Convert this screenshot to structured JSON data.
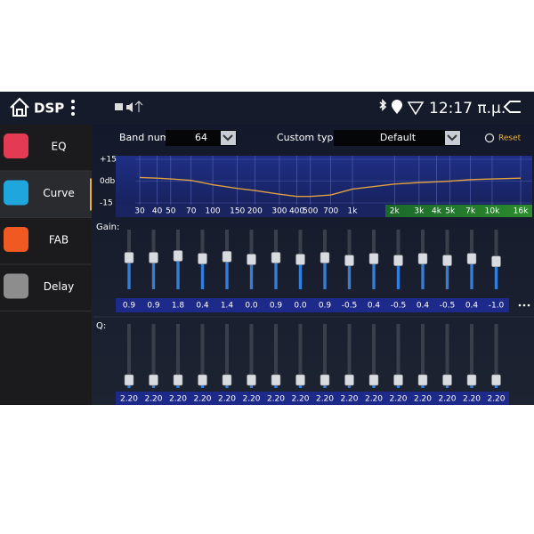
{
  "status_bar": {
    "title": "DSP",
    "time": "12:17 π.μ."
  },
  "sidebar": {
    "items": [
      "EQ",
      "Curve",
      "FAB",
      "Delay"
    ],
    "selected": 1
  },
  "controls": {
    "band_num_label": "Band num:",
    "band_num": 64,
    "custom_type_label": "Custom type:",
    "custom_type": "Default",
    "reset": "Reset"
  },
  "curve_graph": {
    "yticks": [
      {
        "value": 15,
        "label": "+15"
      },
      {
        "value": 0,
        "label": "0db"
      },
      {
        "value": -15,
        "label": "-15"
      }
    ],
    "freqs": [
      30,
      40,
      50,
      70,
      100,
      150,
      200,
      300,
      400,
      500,
      700,
      {
        "value": 1000,
        "label": "1k"
      },
      {
        "value": 2000,
        "label": "2k"
      },
      {
        "value": 3000,
        "label": "3k"
      },
      {
        "value": 4000,
        "label": "4k"
      },
      {
        "value": 5000,
        "label": "5k"
      },
      {
        "value": 7000,
        "label": "7k"
      },
      {
        "value": 10000,
        "label": "10k"
      },
      {
        "value": 16000,
        "label": "16k"
      }
    ],
    "response": [
      2.5,
      2,
      1.5,
      0.5,
      -2.5,
      -5,
      -6.5,
      -9,
      -10.5,
      -10.5,
      -9.5,
      -5.5,
      -2,
      -1,
      -0.5,
      0,
      1,
      1.5,
      2
    ]
  },
  "gain": {
    "label": "Gain:",
    "values": [
      0.9,
      0.9,
      1.8,
      0.4,
      1.4,
      0.0,
      0.9,
      0.0,
      0.9,
      -0.5,
      0.4,
      -0.5,
      0.4,
      -0.5,
      0.4,
      -1.0
    ],
    "value_labels": [
      "0.9",
      "0.9",
      "1.8",
      "0.4",
      "1.4",
      "0.0",
      "0.9",
      "0.0",
      "0.9",
      "-0.5",
      "0.4",
      "-0.5",
      "0.4",
      "-0.5",
      "0.4",
      "-1.0"
    ]
  },
  "q": {
    "label": "Q:",
    "values": [
      2.2,
      2.2,
      2.2,
      2.2,
      2.2,
      2.2,
      2.2,
      2.2,
      2.2,
      2.2,
      2.2,
      2.2,
      2.2,
      2.2,
      2.2,
      2.2
    ],
    "value_labels": [
      "2.20",
      "2.20",
      "2.20",
      "2.20",
      "2.20",
      "2.20",
      "2.20",
      "2.20",
      "2.20",
      "2.20",
      "2.20",
      "2.20",
      "2.20",
      "2.20",
      "2.20",
      "2.20"
    ]
  }
}
